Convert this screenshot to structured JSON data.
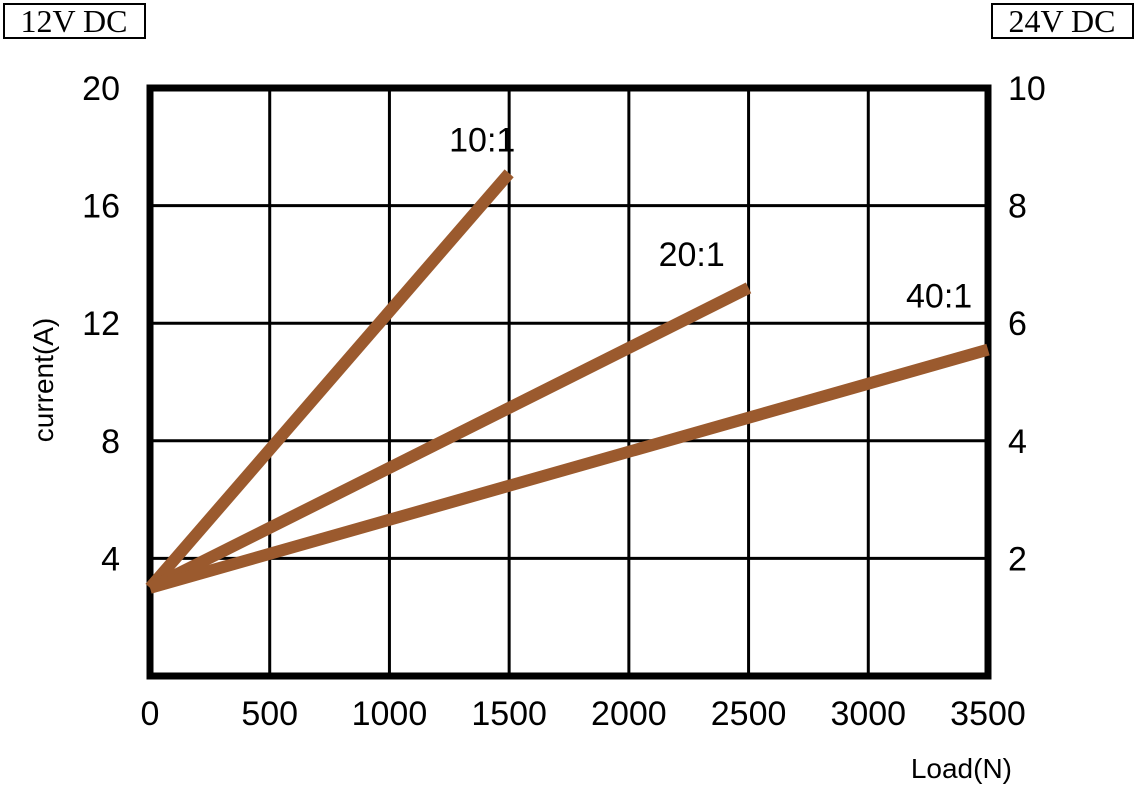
{
  "chart_data": {
    "type": "line",
    "xlabel": "Load(N)",
    "ylabel": "current(A)",
    "xlim": [
      0,
      3500
    ],
    "ylim": [
      0,
      20
    ],
    "x_ticks": [
      "0",
      "500",
      "1000",
      "1500",
      "2000",
      "2500",
      "3000",
      "3500"
    ],
    "y_ticks": [
      "4",
      "8",
      "12",
      "16",
      "20"
    ],
    "y2lim": [
      0,
      10
    ],
    "y2_ticks": [
      "2",
      "4",
      "6",
      "8",
      "10"
    ],
    "y_left_caption": "12V DC",
    "y_right_caption": "24V DC",
    "grid": true,
    "line_color": "#9b5a2e",
    "series": [
      {
        "name": "10:1",
        "x": [
          0,
          1500
        ],
        "y": [
          3.0,
          17.1
        ]
      },
      {
        "name": "20:1",
        "x": [
          0,
          2500
        ],
        "y": [
          3.0,
          13.2
        ]
      },
      {
        "name": "40:1",
        "x": [
          0,
          3500
        ],
        "y": [
          3.0,
          11.1
        ]
      }
    ]
  }
}
